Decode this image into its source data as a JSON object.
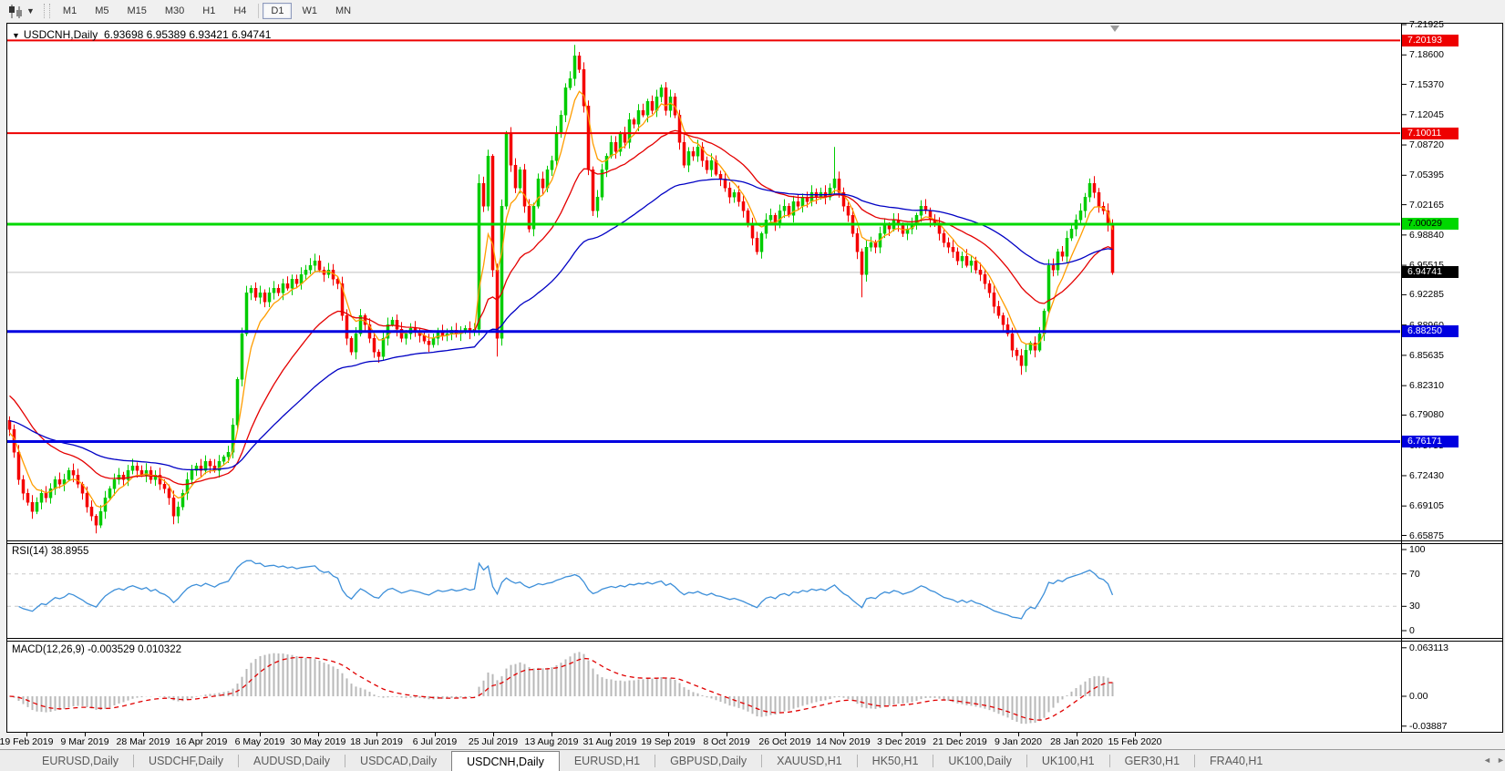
{
  "toolbar": {
    "chart_type_icon": "candlestick-chart-icon",
    "timeframes": [
      {
        "label": "M1",
        "active": false
      },
      {
        "label": "M5",
        "active": false
      },
      {
        "label": "M15",
        "active": false
      },
      {
        "label": "M30",
        "active": false
      },
      {
        "label": "H1",
        "active": false
      },
      {
        "label": "H4",
        "active": false
      },
      {
        "label": "D1",
        "active": true
      },
      {
        "label": "W1",
        "active": false
      },
      {
        "label": "MN",
        "active": false
      }
    ]
  },
  "chart": {
    "title": {
      "symbol": "USDCNH,Daily",
      "ohlc": "6.93698 6.95389 6.93421 6.94741"
    },
    "price_axis_ticks": [
      "7.21925",
      "7.18600",
      "7.15370",
      "7.12045",
      "7.08720",
      "7.05395",
      "7.02165",
      "6.98840",
      "6.95515",
      "6.92285",
      "6.88960",
      "6.85635",
      "6.82310",
      "6.79080",
      "6.75755",
      "6.72430",
      "6.69105",
      "6.65875"
    ],
    "levels": [
      {
        "price": 7.20193,
        "label": "7.20193",
        "color": "#ee0000",
        "text_color": "#ffffff",
        "width": 2
      },
      {
        "price": 7.10011,
        "label": "7.10011",
        "color": "#ee0000",
        "text_color": "#ffffff",
        "width": 2
      },
      {
        "price": 7.00029,
        "label": "7.00029",
        "color": "#00d800",
        "text_color": "#000000",
        "width": 3
      },
      {
        "price": 6.8825,
        "label": "6.88250",
        "color": "#0000e0",
        "text_color": "#ffffff",
        "width": 3
      },
      {
        "price": 6.76171,
        "label": "6.76171",
        "color": "#0000e0",
        "text_color": "#ffffff",
        "width": 3
      }
    ],
    "current_price": {
      "value": "6.94741",
      "price": 6.94741,
      "line_color": "#c0c0c0",
      "flag_bg": "#000000",
      "flag_text": "#ffffff"
    }
  },
  "chart_data": {
    "type": "candlestick",
    "symbol": "USDCNH",
    "timeframe": "Daily",
    "current_bar_ohlc": {
      "open": 6.93698,
      "high": 6.95389,
      "low": 6.93421,
      "close": 6.94741
    },
    "y_range": [
      6.65875,
      7.21925
    ],
    "x_dates": [
      "19 Feb 2019",
      "9 Mar 2019",
      "28 Mar 2019",
      "16 Apr 2019",
      "6 May 2019",
      "30 May 2019",
      "18 Jun 2019",
      "6 Jul 2019",
      "25 Jul 2019",
      "13 Aug 2019",
      "31 Aug 2019",
      "19 Sep 2019",
      "8 Oct 2019",
      "26 Oct 2019",
      "14 Nov 2019",
      "3 Dec 2019",
      "21 Dec 2019",
      "9 Jan 2020",
      "28 Jan 2020",
      "15 Feb 2020"
    ],
    "date_x": [
      29,
      93,
      157,
      221,
      285,
      349,
      413,
      477,
      541,
      605,
      669,
      733,
      797,
      861,
      925,
      989,
      1053,
      1117,
      1181,
      1245
    ],
    "closes": [
      6.775,
      6.75,
      6.72,
      6.705,
      6.695,
      6.685,
      6.695,
      6.705,
      6.7,
      6.71,
      6.72,
      6.715,
      6.72,
      6.73,
      6.725,
      6.715,
      6.705,
      6.69,
      6.68,
      6.67,
      6.685,
      6.7,
      6.71,
      6.72,
      6.725,
      6.72,
      6.73,
      6.735,
      6.73,
      6.725,
      6.73,
      6.72,
      6.725,
      6.715,
      6.71,
      6.7,
      6.68,
      6.69,
      6.705,
      6.72,
      6.73,
      6.735,
      6.73,
      6.74,
      6.735,
      6.73,
      6.74,
      6.745,
      6.75,
      6.78,
      6.83,
      6.88,
      6.925,
      6.93,
      6.92,
      6.925,
      6.915,
      6.925,
      6.93,
      6.925,
      6.935,
      6.93,
      6.94,
      6.935,
      6.945,
      6.95,
      6.955,
      6.96,
      6.95,
      6.945,
      6.95,
      6.94,
      6.935,
      6.9,
      6.875,
      6.86,
      6.88,
      6.9,
      6.89,
      6.875,
      6.86,
      6.855,
      6.875,
      6.89,
      6.895,
      6.885,
      6.875,
      6.88,
      6.886,
      6.882,
      6.878,
      6.872,
      6.868,
      6.875,
      6.882,
      6.878,
      6.88,
      6.884,
      6.88,
      6.882,
      6.886,
      6.882,
      6.885,
      7.045,
      7.02,
      7.075,
      6.95,
      6.875,
      7.02,
      7.1,
      7.065,
      7.04,
      7.06,
      7.02,
      6.995,
      7.02,
      7.05,
      7.04,
      7.06,
      7.07,
      7.1,
      7.12,
      7.15,
      7.16,
      7.185,
      7.17,
      7.13,
      7.06,
      7.015,
      7.03,
      7.06,
      7.075,
      7.09,
      7.08,
      7.1,
      7.09,
      7.115,
      7.11,
      7.125,
      7.12,
      7.135,
      7.125,
      7.14,
      7.15,
      7.125,
      7.14,
      7.12,
      7.09,
      7.065,
      7.08,
      7.075,
      7.085,
      7.07,
      7.06,
      7.07,
      7.055,
      7.05,
      7.04,
      7.03,
      7.035,
      7.025,
      7.015,
      7.0,
      6.985,
      6.97,
      6.99,
      7.005,
      7.01,
      7.0,
      7.015,
      7.02,
      7.01,
      7.025,
      7.02,
      7.03,
      7.025,
      7.035,
      7.03,
      7.035,
      7.03,
      7.04,
      7.05,
      7.035,
      7.02,
      7.01,
      6.99,
      6.97,
      6.945,
      6.975,
      6.98,
      6.975,
      6.99,
      7.0,
      6.995,
      7.005,
      7.0,
      6.99,
      6.995,
      7.0,
      7.01,
      7.02,
      7.015,
      7.005,
      7.0,
      6.99,
      6.98,
      6.975,
      6.97,
      6.96,
      6.965,
      6.955,
      6.96,
      6.95,
      6.945,
      6.935,
      6.925,
      6.91,
      6.9,
      6.89,
      6.88,
      6.862,
      6.856,
      6.845,
      6.862,
      6.87,
      6.862,
      6.88,
      6.905,
      6.955,
      6.95,
      6.97,
      6.965,
      6.985,
      6.995,
      7.005,
      7.015,
      7.03,
      7.045,
      7.035,
      7.02,
      7.015,
      7.0,
      6.947
    ],
    "candle_up_color": "#00cc00",
    "candle_down_color": "#f40000",
    "moving_averages": [
      {
        "period": 6,
        "color": "#ff9d00",
        "seed": 6.77
      },
      {
        "period": 25,
        "color": "#e40000",
        "seed": 6.815
      },
      {
        "period": 60,
        "color": "#0000c4",
        "seed": 6.785
      }
    ],
    "indicators": {
      "rsi": {
        "period": 14,
        "value": 38.8955,
        "range": [
          0,
          100
        ],
        "level_lines": [
          70,
          30
        ],
        "axis_labels": [
          "100",
          "70",
          "30",
          "0"
        ],
        "line_color": "#3d8fd9"
      },
      "macd": {
        "fast": 12,
        "slow": 26,
        "signal": 9,
        "values": [
          -0.003529,
          0.010322
        ],
        "axis_labels": [
          "0.063113",
          "0.00",
          "-0.03887"
        ],
        "axis_max": 0.063113,
        "axis_min": -0.03887,
        "hist_color": "#b8b8b8",
        "signal_color": "#e00000"
      }
    }
  },
  "rsi": {
    "header": "RSI(14) 38.8955"
  },
  "macd": {
    "header": "MACD(12,26,9) -0.003529 0.010322"
  },
  "tabs": {
    "items": [
      {
        "label": "EURUSD,Daily",
        "active": false
      },
      {
        "label": "USDCHF,Daily",
        "active": false
      },
      {
        "label": "AUDUSD,Daily",
        "active": false
      },
      {
        "label": "USDCAD,Daily",
        "active": false
      },
      {
        "label": "USDCNH,Daily",
        "active": true
      },
      {
        "label": "EURUSD,H1",
        "active": false
      },
      {
        "label": "GBPUSD,Daily",
        "active": false
      },
      {
        "label": "XAUUSD,H1",
        "active": false
      },
      {
        "label": "HK50,H1",
        "active": false
      },
      {
        "label": "UK100,Daily",
        "active": false
      },
      {
        "label": "UK100,H1",
        "active": false
      },
      {
        "label": "GER30,H1",
        "active": false
      },
      {
        "label": "FRA40,H1",
        "active": false
      }
    ],
    "scroll_left": "◄",
    "scroll_right": "►"
  }
}
